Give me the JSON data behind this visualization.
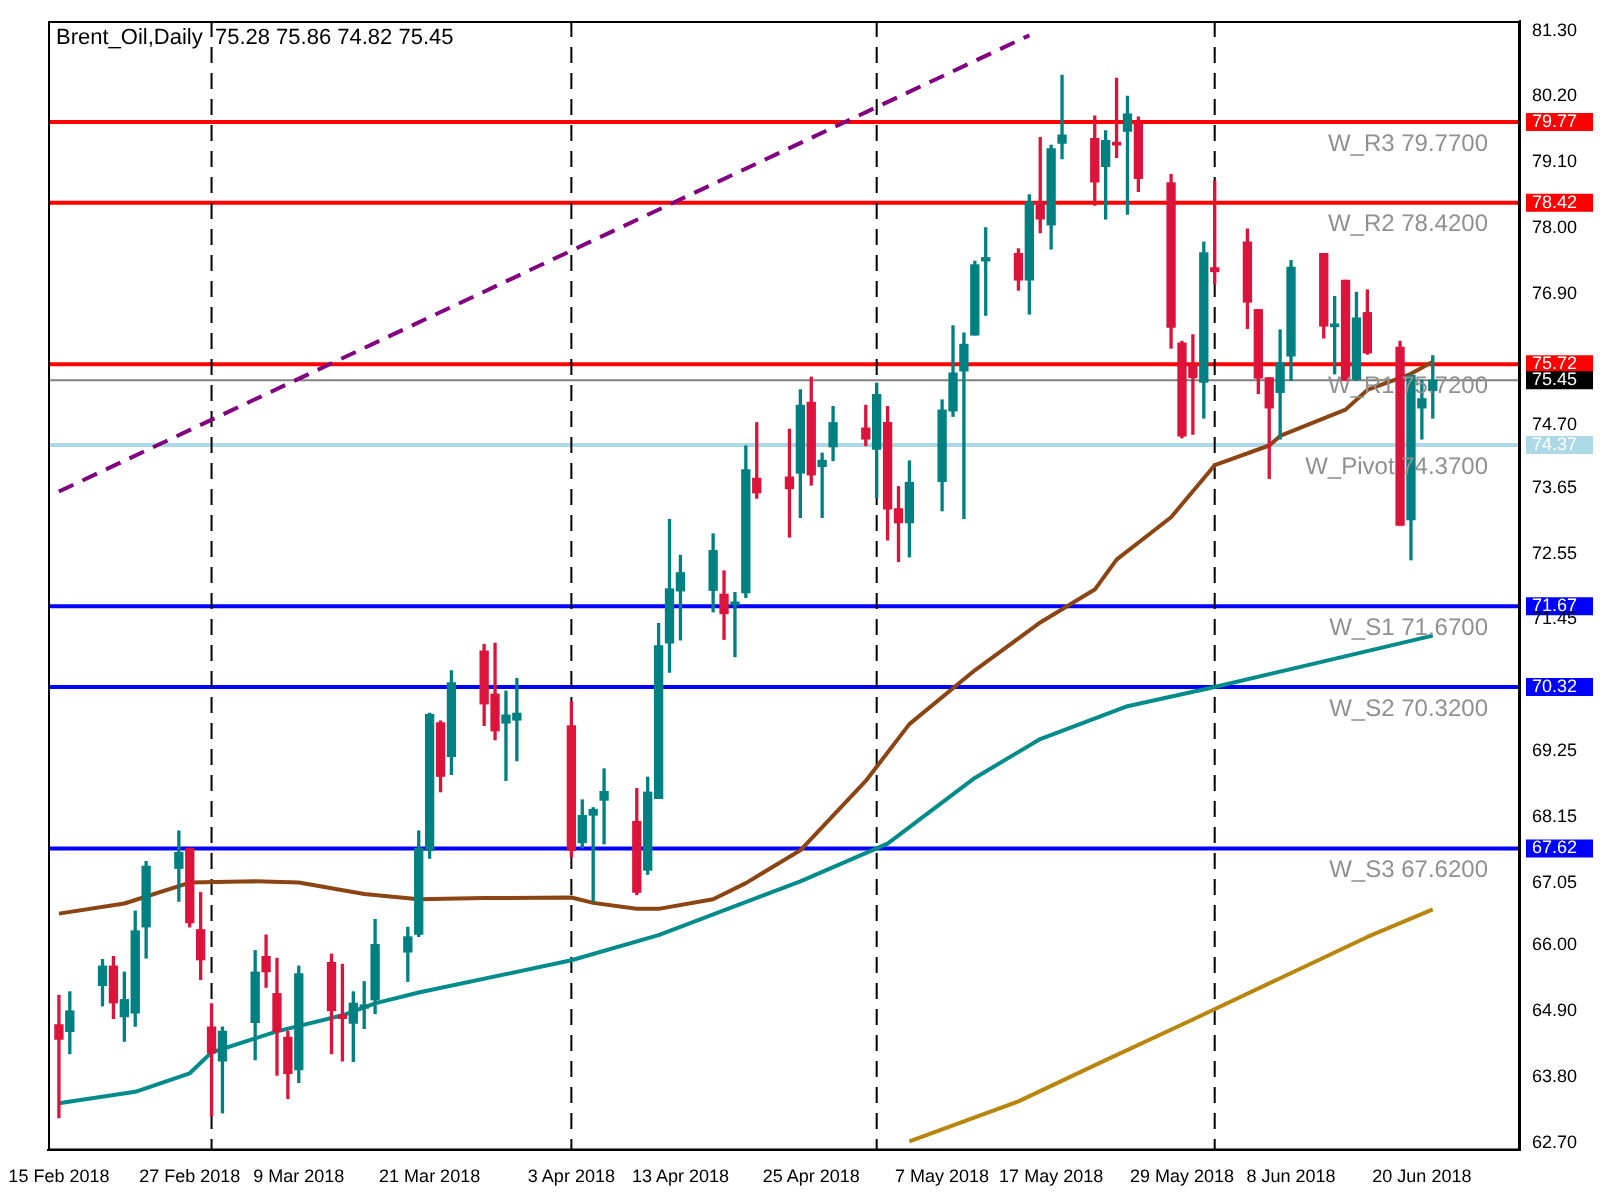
{
  "chart_data": {
    "type": "candlestick",
    "title": "Brent_Oil,Daily  75.28 75.86 74.82 75.45",
    "marker": "none",
    "x": [
      "2018-02-15",
      "2018-02-16",
      "2018-02-19",
      "2018-02-20",
      "2018-02-21",
      "2018-02-22",
      "2018-02-23",
      "2018-02-26",
      "2018-02-27",
      "2018-02-28",
      "2018-03-01",
      "2018-03-02",
      "2018-03-05",
      "2018-03-06",
      "2018-03-07",
      "2018-03-08",
      "2018-03-09",
      "2018-03-12",
      "2018-03-13",
      "2018-03-14",
      "2018-03-15",
      "2018-03-16",
      "2018-03-19",
      "2018-03-20",
      "2018-03-21",
      "2018-03-22",
      "2018-03-23",
      "2018-03-26",
      "2018-03-27",
      "2018-03-28",
      "2018-03-29",
      "2018-04-03",
      "2018-04-04",
      "2018-04-05",
      "2018-04-06",
      "2018-04-09",
      "2018-04-10",
      "2018-04-11",
      "2018-04-12",
      "2018-04-13",
      "2018-04-16",
      "2018-04-17",
      "2018-04-18",
      "2018-04-19",
      "2018-04-20",
      "2018-04-23",
      "2018-04-24",
      "2018-04-25",
      "2018-04-26",
      "2018-04-27",
      "2018-04-30",
      "2018-05-01",
      "2018-05-02",
      "2018-05-03",
      "2018-05-04",
      "2018-05-07",
      "2018-05-08",
      "2018-05-09",
      "2018-05-10",
      "2018-05-11",
      "2018-05-14",
      "2018-05-15",
      "2018-05-16",
      "2018-05-17",
      "2018-05-18",
      "2018-05-21",
      "2018-05-22",
      "2018-05-23",
      "2018-05-24",
      "2018-05-25",
      "2018-05-28",
      "2018-05-29",
      "2018-05-30",
      "2018-05-31",
      "2018-06-01",
      "2018-06-04",
      "2018-06-05",
      "2018-06-06",
      "2018-06-07",
      "2018-06-08",
      "2018-06-11",
      "2018-06-12",
      "2018-06-13",
      "2018-06-14",
      "2018-06-15",
      "2018-06-18",
      "2018-06-19",
      "2018-06-20",
      "2018-06-21"
    ],
    "xlim": [
      "2018-02-14",
      "2018-06-29"
    ],
    "xticks": [
      {
        "value": "2018-02-15",
        "label": "15 Feb 2018"
      },
      {
        "value": "2018-02-27",
        "label": "27 Feb 2018"
      },
      {
        "value": "2018-03-09",
        "label": "9 Mar 2018"
      },
      {
        "value": "2018-03-21",
        "label": "21 Mar 2018"
      },
      {
        "value": "2018-04-03",
        "label": "3 Apr 2018"
      },
      {
        "value": "2018-04-13",
        "label": "13 Apr 2018"
      },
      {
        "value": "2018-04-25",
        "label": "25 Apr 2018"
      },
      {
        "value": "2018-05-07",
        "label": "7 May 2018"
      },
      {
        "value": "2018-05-17",
        "label": "17 May 2018"
      },
      {
        "value": "2018-05-29",
        "label": "29 May 2018"
      },
      {
        "value": "2018-06-08",
        "label": "8 Jun 2018"
      },
      {
        "value": "2018-06-20",
        "label": "20 Jun 2018"
      }
    ],
    "ylim": [
      62.57,
      81.46
    ],
    "yticks": [
      {
        "value": 62.7,
        "label": "62.70"
      },
      {
        "value": 63.8,
        "label": "63.80"
      },
      {
        "value": 64.9,
        "label": "64.90"
      },
      {
        "value": 66,
        "label": "66.00"
      },
      {
        "value": 67.05,
        "label": "67.05"
      },
      {
        "value": 67.62,
        "label": "67.62"
      },
      {
        "value": 68.15,
        "label": "68.15"
      },
      {
        "value": 69.25,
        "label": "69.25"
      },
      {
        "value": 70.32,
        "label": "70.32"
      },
      {
        "value": 71.67,
        "label": "71.67"
      },
      {
        "value": 71.45,
        "label": "71.45"
      },
      {
        "value": 72.55,
        "label": "72.55"
      },
      {
        "value": 73.65,
        "label": "73.65"
      },
      {
        "value": 74.37,
        "label": "74.37"
      },
      {
        "value": 74.7,
        "label": "74.70"
      },
      {
        "value": 75.72,
        "label": "75.72"
      },
      {
        "value": 75.45,
        "label": "75.45"
      },
      {
        "value": 76.9,
        "label": "76.90"
      },
      {
        "value": 78,
        "label": "78.00"
      },
      {
        "value": 78.42,
        "label": "78.42"
      },
      {
        "value": 79.1,
        "label": "79.10"
      },
      {
        "value": 79.77,
        "label": "79.77"
      },
      {
        "value": 80.2,
        "label": "80.20"
      },
      {
        "value": 81.3,
        "label": "81.30"
      }
    ],
    "series": [
      {
        "type": "line",
        "color": "#8b4513",
        "x": [
          "2018-02-15",
          "2018-02-21",
          "2018-02-27",
          "2018-03-05",
          "2018-03-09",
          "2018-03-15",
          "2018-03-20",
          "2018-03-26",
          "2018-04-03",
          "2018-04-05",
          "2018-04-09",
          "2018-04-11",
          "2018-04-16",
          "2018-04-19",
          "2018-04-24",
          "2018-04-30",
          "2018-05-04",
          "2018-05-10",
          "2018-05-16",
          "2018-05-21",
          "2018-05-23",
          "2018-05-28",
          "2018-06-01",
          "2018-06-06",
          "2018-06-07",
          "2018-06-13",
          "2018-06-15",
          "2018-06-19",
          "2018-06-21"
        ],
        "values": [
          66.53,
          66.7,
          67.05,
          67.07,
          67.05,
          66.86,
          66.77,
          66.79,
          66.8,
          66.71,
          66.61,
          66.61,
          66.77,
          67.04,
          67.59,
          68.75,
          69.7,
          70.6,
          71.4,
          71.95,
          72.45,
          73.16,
          74.03,
          74.36,
          74.52,
          74.96,
          75.29,
          75.56,
          75.76
        ]
      },
      {
        "type": "line",
        "color": "#008b8b",
        "x": [
          "2018-02-15",
          "2018-02-22",
          "2018-02-27",
          "2018-03-01",
          "2018-03-07",
          "2018-03-13",
          "2018-03-16",
          "2018-03-20",
          "2018-04-03",
          "2018-04-11",
          "2018-04-24",
          "2018-05-02",
          "2018-05-10",
          "2018-05-16",
          "2018-05-24",
          "2018-06-01",
          "2018-06-11",
          "2018-06-21"
        ],
        "values": [
          63.36,
          63.55,
          63.86,
          64.21,
          64.56,
          64.83,
          65.03,
          65.21,
          65.75,
          66.17,
          67.07,
          67.7,
          68.8,
          69.45,
          70,
          70.32,
          70.75,
          71.18
        ]
      },
      {
        "type": "line",
        "color": "#b8860b",
        "x": [
          "2018-05-04",
          "2018-05-14",
          "2018-05-22",
          "2018-05-30",
          "2018-06-07",
          "2018-06-15",
          "2018-06-21"
        ],
        "values": [
          62.72,
          63.39,
          64.08,
          64.76,
          65.45,
          66.14,
          66.6
        ]
      },
      {
        "type": "line",
        "color": "#800080",
        "line_style": "dashed",
        "x": [
          "2018-02-15",
          "2018-05-15"
        ],
        "values": [
          73.59,
          81.22
        ]
      },
      {
        "ohlc": [
          [
            64.67,
            65.16,
            63.12,
            64.43
          ],
          [
            64.56,
            65.22,
            64.19,
            64.9
          ],
          [
            65.33,
            65.76,
            64.99,
            65.65
          ],
          [
            65.65,
            65.81,
            64.78,
            65.04
          ],
          [
            64.81,
            65.55,
            64.4,
            65.09
          ],
          [
            64.87,
            66.57,
            64.65,
            66.24
          ],
          [
            66.31,
            67.4,
            65.79,
            67.32
          ],
          [
            67.29,
            67.91,
            66.74,
            67.55
          ],
          [
            67.62,
            67.62,
            66.31,
            66.38
          ],
          [
            66.26,
            66.88,
            65.43,
            65.76
          ],
          [
            64.63,
            65.02,
            63.15,
            64.2
          ],
          [
            64.07,
            64.63,
            63.2,
            64.56
          ],
          [
            64.71,
            65.91,
            64.09,
            65.55
          ],
          [
            65.81,
            66.17,
            65.3,
            65.56
          ],
          [
            65.19,
            65.78,
            63.83,
            64.56
          ],
          [
            64.46,
            64.56,
            63.44,
            63.86
          ],
          [
            63.92,
            65.65,
            63.71,
            65.52
          ],
          [
            65.71,
            65.85,
            64.19,
            64.91
          ],
          [
            64.83,
            65.68,
            64.07,
            64.78
          ],
          [
            64.7,
            65.22,
            64.06,
            65.03
          ],
          [
            64.95,
            65.39,
            64.61,
            65
          ],
          [
            65.09,
            66.43,
            64.86,
            66.01
          ],
          [
            65.89,
            66.3,
            65.4,
            66.14
          ],
          [
            66.19,
            67.91,
            66.15,
            67.62
          ],
          [
            67.59,
            69.88,
            67.46,
            69.86
          ],
          [
            69.72,
            69.75,
            68.57,
            68.83
          ],
          [
            69.16,
            70.59,
            68.86,
            70.39
          ],
          [
            70.92,
            71.03,
            69.68,
            70.04
          ],
          [
            70.2,
            71.05,
            69.44,
            69.59
          ],
          [
            69.72,
            70.25,
            68.76,
            69.85
          ],
          [
            69.77,
            70.46,
            69.09,
            69.88
          ],
          [
            69.67,
            70.07,
            67.48,
            67.59
          ],
          [
            67.72,
            68.43,
            67.63,
            68.17
          ],
          [
            68.18,
            68.3,
            66.74,
            68.27
          ],
          [
            68.43,
            68.95,
            67.7,
            68.57
          ],
          [
            68.07,
            68.62,
            66.85,
            66.89
          ],
          [
            67.26,
            68.81,
            67.19,
            68.56
          ],
          [
            68.46,
            71.38,
            68.46,
            71.01
          ],
          [
            71.06,
            73.12,
            70.57,
            71.96
          ],
          [
            71.93,
            72.52,
            71.11,
            72.23
          ],
          [
            71.94,
            72.88,
            71.58,
            72.6
          ],
          [
            71.87,
            72.26,
            71.12,
            71.55
          ],
          [
            71.7,
            71.9,
            70.83,
            71.74
          ],
          [
            71.9,
            74.35,
            71.82,
            73.95
          ],
          [
            73.81,
            74.74,
            73.48,
            73.57
          ],
          [
            73.83,
            74.63,
            72.83,
            73.64
          ],
          [
            73.9,
            75.29,
            73.16,
            75.03
          ],
          [
            75.08,
            75.5,
            73.7,
            73.87
          ],
          [
            74.01,
            74.23,
            73.16,
            74.11
          ],
          [
            74.34,
            75.01,
            74.11,
            74.74
          ],
          [
            74.65,
            75.03,
            74.36,
            74.47
          ],
          [
            74.3,
            75.4,
            73.49,
            75.21
          ],
          [
            74.74,
            75.01,
            72.78,
            73.3
          ],
          [
            73.3,
            73.67,
            72.42,
            73.07
          ],
          [
            73.07,
            74.1,
            72.5,
            73.74
          ],
          [
            73.76,
            75.12,
            73.27,
            74.95
          ],
          [
            74.94,
            76.36,
            74.85,
            75.57
          ],
          [
            75.61,
            76.24,
            73.14,
            76.05
          ],
          [
            76.21,
            77.44,
            76.21,
            77.38
          ],
          [
            77.45,
            78,
            76.54,
            77.5
          ],
          [
            77.57,
            77.65,
            76.96,
            77.13
          ],
          [
            77.13,
            78.55,
            76.56,
            78.43
          ],
          [
            78.43,
            79.51,
            77.92,
            78.15
          ],
          [
            78.05,
            79.38,
            77.65,
            79.32
          ],
          [
            79.42,
            80.55,
            79.16,
            79.55
          ],
          [
            79.49,
            79.87,
            78.38,
            78.77
          ],
          [
            79.03,
            79.62,
            78.15,
            79.46
          ],
          [
            79.43,
            80.5,
            79.18,
            79.39
          ],
          [
            79.62,
            80.2,
            78.23,
            79.9
          ],
          [
            79.75,
            79.85,
            78.61,
            78.83
          ],
          [
            78.75,
            78.89,
            75.99,
            76.34
          ],
          [
            76.07,
            76.1,
            74.49,
            74.52
          ],
          [
            75.7,
            76.21,
            74.55,
            75.5
          ],
          [
            75.42,
            77.76,
            74.82,
            77.58
          ],
          [
            77.33,
            78.78,
            77.06,
            77.27
          ],
          [
            77.76,
            77.98,
            76.32,
            76.76
          ],
          [
            76.63,
            76.63,
            75.23,
            75.49
          ],
          [
            75.49,
            75.49,
            73.81,
            74.99
          ],
          [
            75.25,
            76.29,
            74.47,
            75.74
          ],
          [
            75.86,
            77.45,
            75.45,
            77.34
          ],
          [
            77.57,
            77.57,
            76.16,
            76.36
          ],
          [
            76.35,
            76.85,
            75.56,
            76.39
          ],
          [
            77.12,
            77.12,
            75.45,
            75.45
          ],
          [
            75.47,
            76.92,
            75.45,
            76.49
          ],
          [
            76.58,
            76.96,
            75.89,
            75.91
          ],
          [
            76,
            76.1,
            73.03,
            73.03
          ],
          [
            73.12,
            75.53,
            72.45,
            75.53
          ],
          [
            74.99,
            75.45,
            74.47,
            75.14
          ],
          [
            75.28,
            75.86,
            74.82,
            75.45
          ]
        ],
        "colors": [
          "#dc143c",
          "#008080",
          "#008080",
          "#dc143c",
          "#008080",
          "#008080",
          "#008080",
          "#008080",
          "#dc143c",
          "#dc143c",
          "#dc143c",
          "#008080",
          "#008080",
          "#dc143c",
          "#dc143c",
          "#dc143c",
          "#008080",
          "#dc143c",
          "#dc143c",
          "#008080",
          "#008080",
          "#008080",
          "#008080",
          "#008080",
          "#008080",
          "#dc143c",
          "#008080",
          "#dc143c",
          "#dc143c",
          "#008080",
          "#008080",
          "#dc143c",
          "#008080",
          "#008080",
          "#008080",
          "#dc143c",
          "#008080",
          "#008080",
          "#008080",
          "#008080",
          "#008080",
          "#dc143c",
          "#008080",
          "#008080",
          "#dc143c",
          "#dc143c",
          "#008080",
          "#dc143c",
          "#008080",
          "#008080",
          "#dc143c",
          "#008080",
          "#dc143c",
          "#dc143c",
          "#008080",
          "#008080",
          "#008080",
          "#008080",
          "#008080",
          "#008080",
          "#dc143c",
          "#008080",
          "#dc143c",
          "#008080",
          "#008080",
          "#dc143c",
          "#008080",
          "#dc143c",
          "#008080",
          "#dc143c",
          "#dc143c",
          "#dc143c",
          "#dc143c",
          "#008080",
          "#dc143c",
          "#dc143c",
          "#dc143c",
          "#dc143c",
          "#008080",
          "#008080",
          "#dc143c",
          "#008080",
          "#dc143c",
          "#008080",
          "#dc143c",
          "#dc143c",
          "#008080",
          "#008080",
          "#008080"
        ]
      }
    ],
    "ref_lines": [
      {
        "axis": "y",
        "value": 79.77,
        "label": "W_R3 79.7700",
        "color": "#ff0000"
      },
      {
        "axis": "y",
        "value": 78.42,
        "label": "W_R2 78.4200",
        "color": "#ff0000"
      },
      {
        "axis": "y",
        "value": 75.72,
        "label": "W_R1 75.7200",
        "color": "#ff0000"
      },
      {
        "axis": "y",
        "value": 75.45,
        "label": null,
        "color": "#808080"
      },
      {
        "axis": "y",
        "value": 74.37,
        "label": "W_Pivot 74.3700",
        "color": "#add8e6"
      },
      {
        "axis": "y",
        "value": 71.67,
        "label": "W_S1 71.6700",
        "color": "#0000ff"
      },
      {
        "axis": "y",
        "value": 70.32,
        "label": "W_S2 70.3200",
        "color": "#0000ff"
      },
      {
        "axis": "y",
        "value": 67.62,
        "label": "W_S3 67.6200",
        "color": "#0000ff"
      },
      {
        "axis": "x",
        "value": "2018-03-01",
        "label": null,
        "color": "#000000",
        "line_style": "dashed"
      },
      {
        "axis": "x",
        "value": "2018-04-03",
        "label": null,
        "color": "#000000",
        "line_style": "dashed"
      },
      {
        "axis": "x",
        "value": "2018-05-01",
        "label": null,
        "color": "#000000",
        "line_style": "dashed"
      },
      {
        "axis": "x",
        "value": "2018-06-01",
        "label": null,
        "color": "#000000",
        "line_style": "dashed"
      }
    ]
  }
}
